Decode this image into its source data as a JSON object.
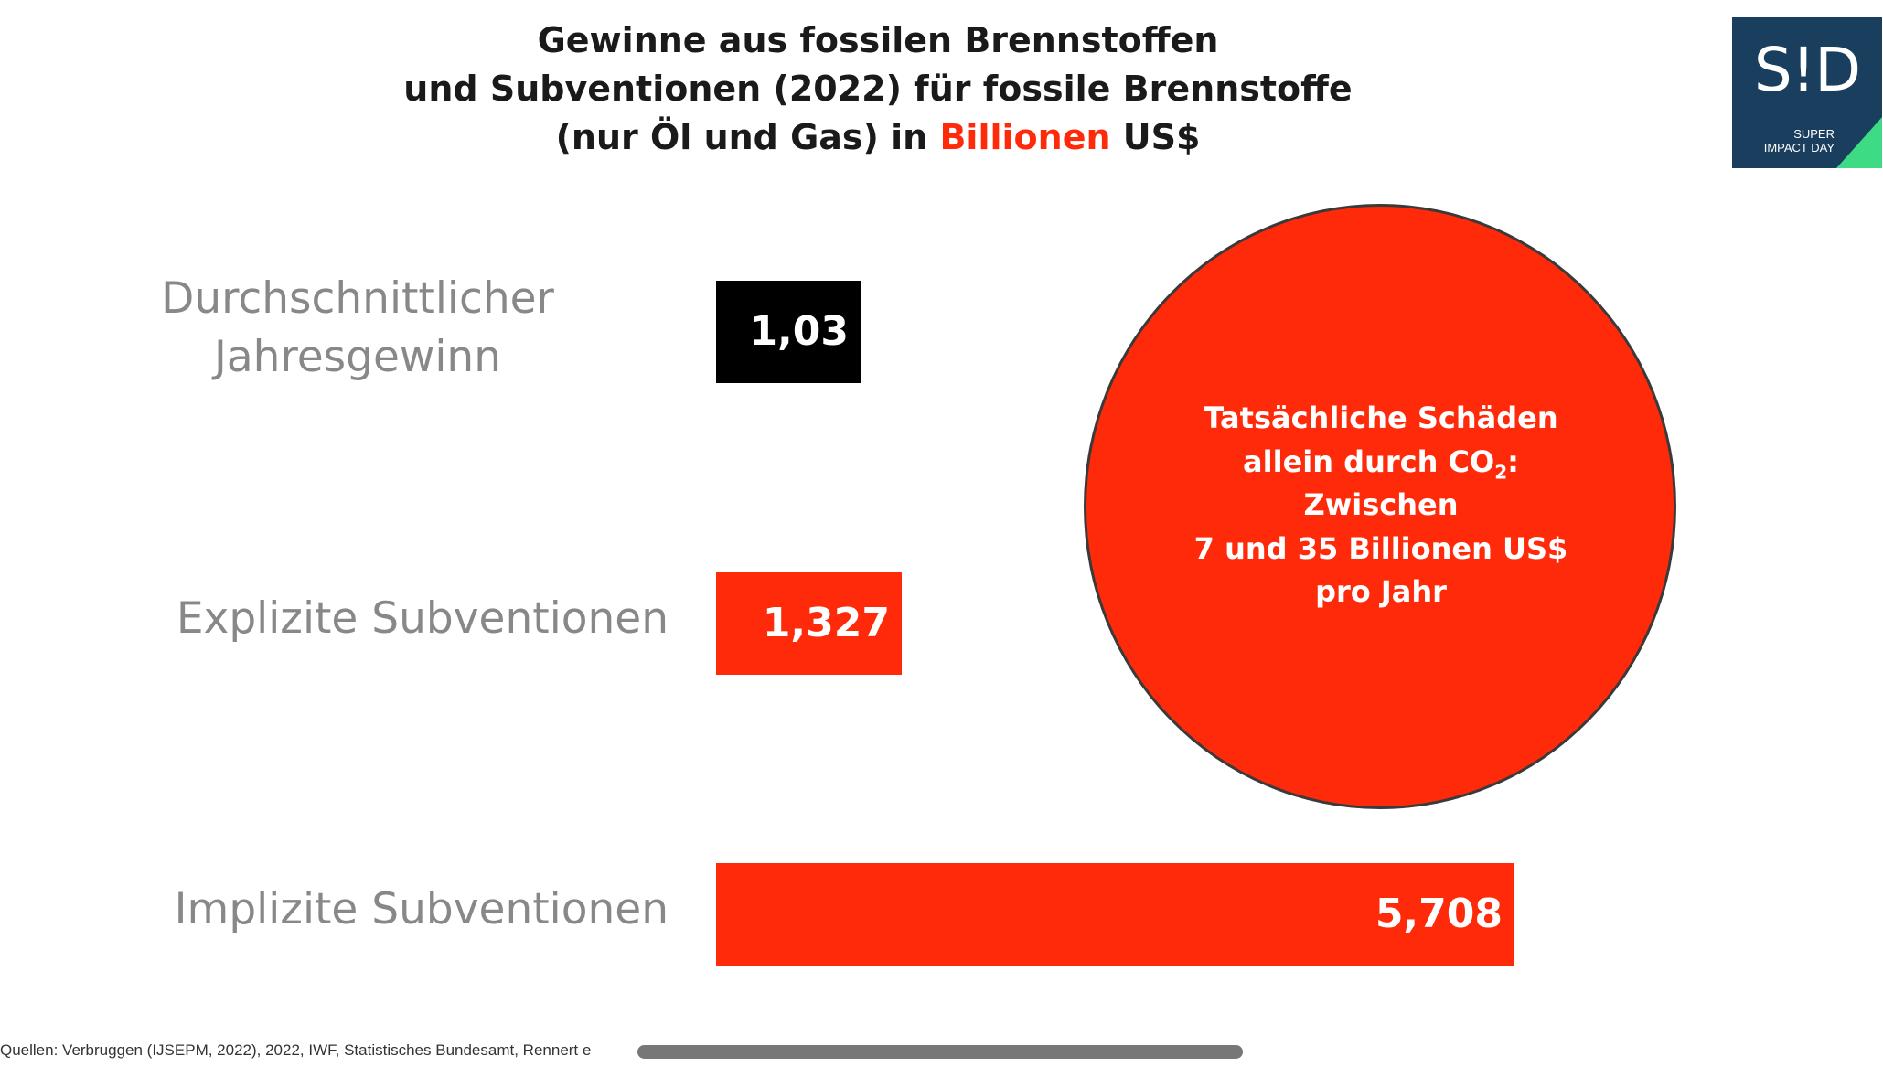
{
  "title": {
    "line1": "Gewinne aus fossilen Brennstoffen",
    "line2": "und Subventionen (2022) für fossile Brennstoffe",
    "line3_before": "(nur Öl und Gas) in",
    "line3_accent": "Billionen",
    "line3_after": "US$"
  },
  "logo": {
    "mark": "S!D",
    "sub_line1": "SUPER",
    "sub_line2": "IMPACT DAY"
  },
  "colors": {
    "accent": "#ff2a0a",
    "dark_bar": "#000000",
    "label_gray": "#888888",
    "logo_bg": "#1a3f5e",
    "logo_green": "#3ddc84"
  },
  "chart_data": {
    "type": "bar",
    "orientation": "horizontal",
    "categories": [
      "Durchschnittlicher Jahresgewinn",
      "Explizite Subventionen",
      "Implizite Subventionen"
    ],
    "category_label_lines": [
      [
        "Durchschnittlicher",
        "Jahresgewinn"
      ],
      [
        "Explizite Subventionen"
      ],
      [
        "Implizite Subventionen"
      ]
    ],
    "values": [
      1.03,
      1.327,
      5.708
    ],
    "value_labels": [
      "1,03",
      "1,327",
      "5,708"
    ],
    "bar_colors": [
      "#000000",
      "#ff2a0a",
      "#ff2a0a"
    ],
    "grid": false,
    "legend": "none"
  },
  "annotation": {
    "line1": "Tatsächliche Schäden",
    "line2_before": "allein durch CO",
    "line2_sub": "2",
    "line2_after": ":",
    "line3": "Zwischen",
    "line4": "7 und 35 Billionen US$",
    "line5": "pro Jahr"
  },
  "source": "Quellen: Verbruggen (IJSEPM, 2022), 2022, IWF, Statistisches Bundesamt, Rennert e"
}
